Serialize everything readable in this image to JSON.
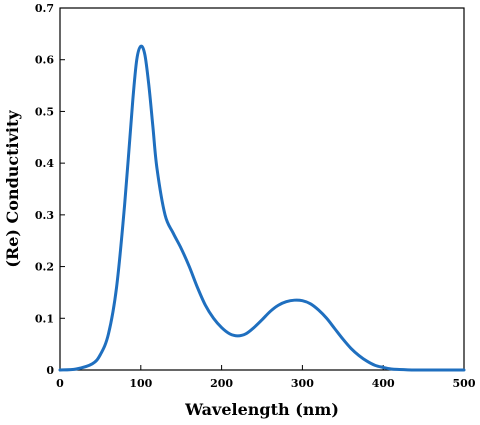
{
  "chart_data": {
    "type": "line",
    "title": "",
    "xlabel": "Wavelength (nm)",
    "ylabel": "(Re) Conductivity",
    "xlim": [
      0,
      500
    ],
    "ylim": [
      0,
      0.7
    ],
    "xticks": [
      "0",
      "100",
      "200",
      "300",
      "400",
      "500"
    ],
    "yticks": [
      "0",
      "0.1",
      "0.2",
      "0.3",
      "0.4",
      "0.5",
      "0.6",
      "0.7"
    ],
    "grid": false,
    "legend": "none",
    "series": [
      {
        "color": "#1f6fbf",
        "x": [
          0,
          20,
          40,
          50,
          60,
          70,
          80,
          90,
          95,
          100,
          105,
          110,
          115,
          120,
          130,
          140,
          150,
          160,
          170,
          180,
          190,
          200,
          210,
          220,
          230,
          240,
          250,
          260,
          270,
          280,
          290,
          300,
          310,
          320,
          330,
          340,
          350,
          360,
          370,
          380,
          390,
          400,
          410,
          420,
          440,
          460,
          480,
          500
        ],
        "y": [
          0,
          0.002,
          0.012,
          0.03,
          0.07,
          0.16,
          0.32,
          0.52,
          0.6,
          0.626,
          0.61,
          0.55,
          0.47,
          0.39,
          0.3,
          0.265,
          0.235,
          0.2,
          0.16,
          0.125,
          0.1,
          0.082,
          0.07,
          0.066,
          0.07,
          0.082,
          0.097,
          0.113,
          0.125,
          0.132,
          0.135,
          0.134,
          0.128,
          0.116,
          0.1,
          0.08,
          0.06,
          0.042,
          0.028,
          0.017,
          0.009,
          0.005,
          0.002,
          0.001,
          0,
          0,
          0,
          0
        ]
      }
    ]
  }
}
